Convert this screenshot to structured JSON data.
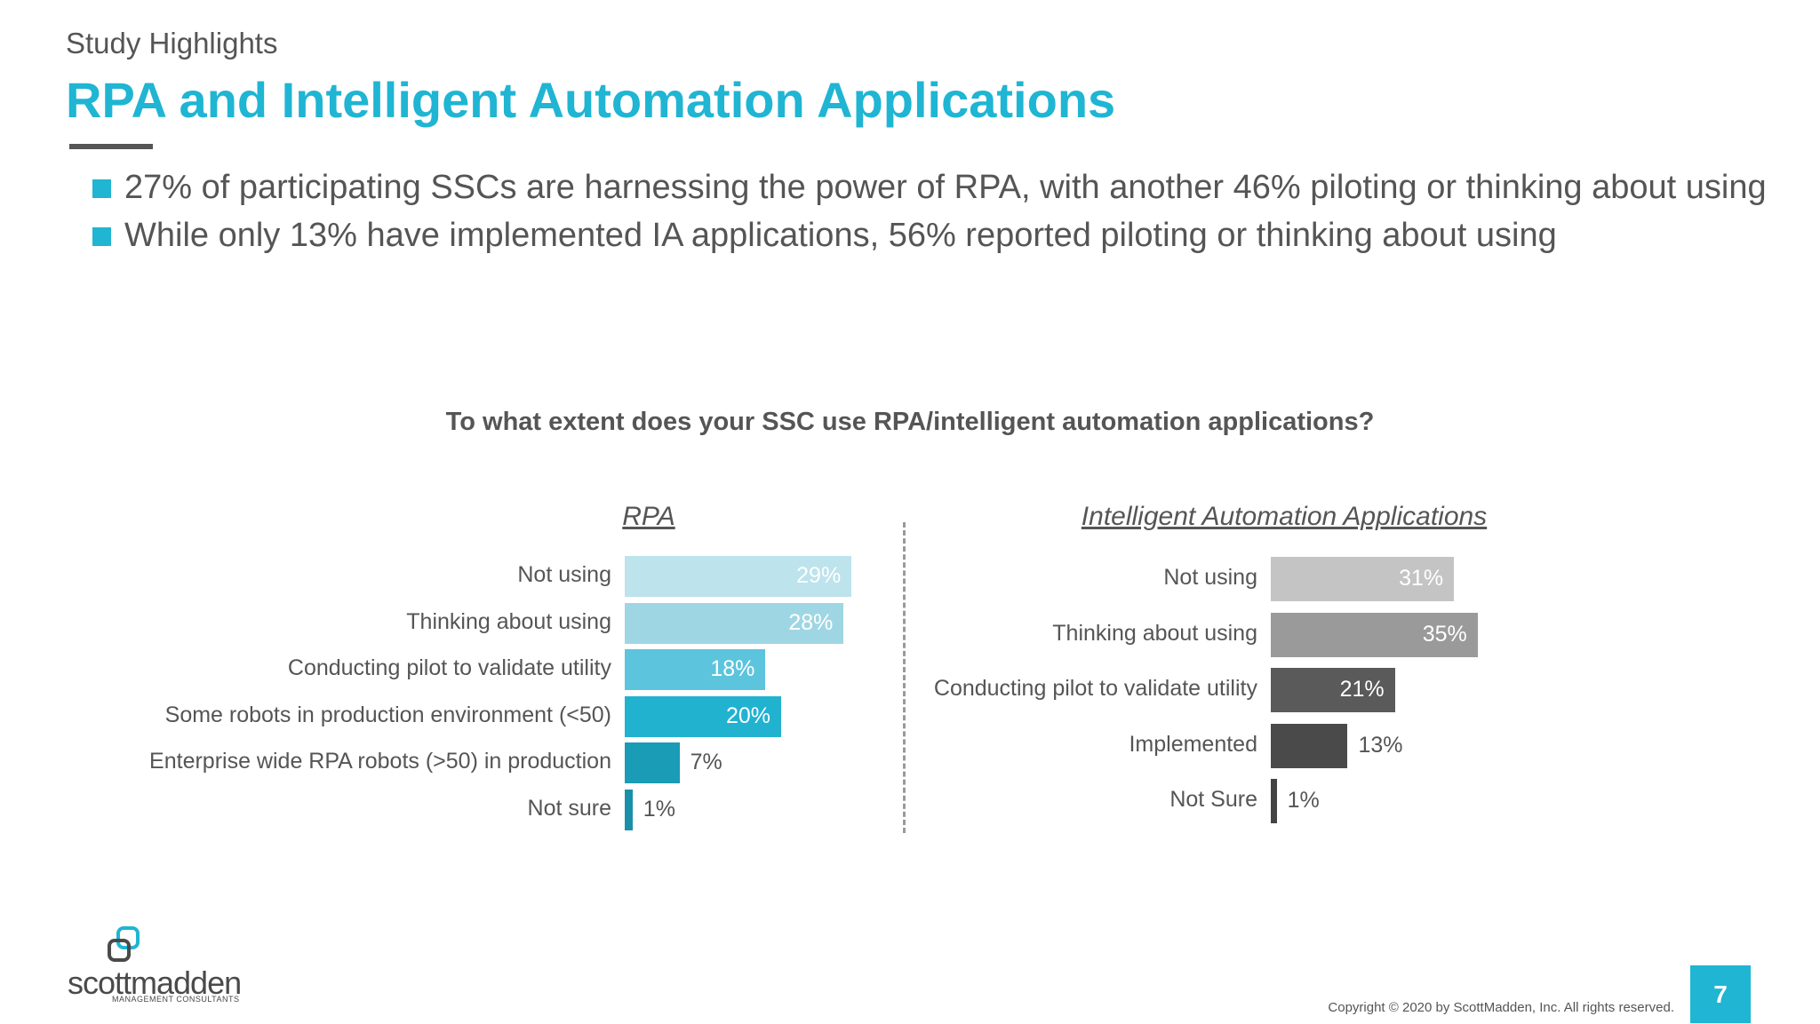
{
  "header": {
    "kicker": "Study Highlights",
    "title": "RPA and Intelligent Automation Applications"
  },
  "bullets": [
    "27% of participating SSCs are harnessing the power of RPA, with another 46% piloting or thinking about using",
    "While only 13% have implemented IA applications, 56% reported piloting or thinking about using"
  ],
  "question": "To what extent does your SSC use RPA/intelligent automation applications?",
  "chart_data": [
    {
      "type": "bar",
      "orientation": "horizontal",
      "title": "RPA",
      "categories": [
        "Not using",
        "Thinking about using",
        "Conducting pilot to validate utility",
        "Some robots in production environment (<50)",
        "Enterprise wide RPA robots (>50) in production",
        "Not sure"
      ],
      "values": [
        29,
        28,
        18,
        20,
        7,
        1
      ],
      "labels": [
        "29%",
        "28%",
        "18%",
        "20%",
        "7%",
        "1%"
      ],
      "colors": [
        "#bde3ec",
        "#9fd6e3",
        "#5cc4dc",
        "#21b2d0",
        "#1a9bb6",
        "#1a8fa8"
      ],
      "label_colors": [
        "#ffffff",
        "#ffffff",
        "#ffffff",
        "#ffffff",
        "#555555",
        "#555555"
      ],
      "unit": "%"
    },
    {
      "type": "bar",
      "orientation": "horizontal",
      "title": "Intelligent Automation Applications",
      "categories": [
        "Not using",
        "Thinking about using",
        "Conducting pilot to validate utility",
        "Implemented",
        "Not Sure"
      ],
      "values": [
        31,
        35,
        21,
        13,
        1
      ],
      "labels": [
        "31%",
        "35%",
        "21%",
        "13%",
        "1%"
      ],
      "colors": [
        "#c4c4c4",
        "#9a9a9a",
        "#5a5a5a",
        "#4a4a4a",
        "#444444"
      ],
      "label_colors": [
        "#ffffff",
        "#ffffff",
        "#ffffff",
        "#555555",
        "#555555"
      ],
      "unit": "%"
    }
  ],
  "footer": {
    "logo_word": "scottmadden",
    "logo_sub": "MANAGEMENT CONSULTANTS",
    "copyright": "Copyright © 2020 by ScottMadden, Inc. All rights reserved.",
    "page_number": "7"
  }
}
